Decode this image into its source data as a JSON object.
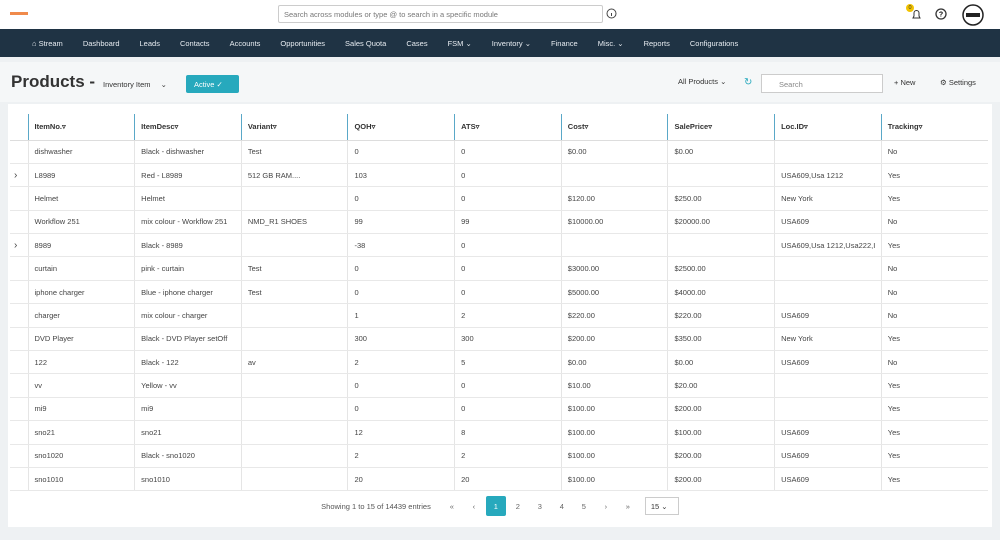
{
  "header": {
    "search_placeholder": "Search across modules or type @ to search in a specific module",
    "notification_count": "0"
  },
  "nav": [
    "Stream",
    "Dashboard",
    "Leads",
    "Contacts",
    "Accounts",
    "Opportunities",
    "Sales Quota",
    "Cases",
    "FSM",
    "Inventory",
    "Finance",
    "Misc.",
    "Reports",
    "Configurations"
  ],
  "nav_dropdowns": [
    8,
    9,
    11
  ],
  "toolbar": {
    "title": "Products -",
    "subtitle": "Inventory Item",
    "status": "Active",
    "filter": "All Products",
    "search_placeholder": "Search",
    "new": "New",
    "settings": "Settings"
  },
  "table": {
    "columns": [
      "ItemNo.",
      "ItemDesc",
      "Variant",
      "QOH",
      "ATS",
      "Cost",
      "SalePrice",
      "Loc.ID",
      "Tracking"
    ],
    "expandable_rows": [
      1,
      4
    ],
    "rows": [
      [
        "dishwasher",
        "Black - dishwasher",
        "Test",
        "0",
        "0",
        "$0.00",
        "$0.00",
        null,
        "No"
      ],
      [
        "L8989",
        "Red - L8989",
        "512 GB RAM....",
        "103",
        "0",
        null,
        null,
        "USA609,Usa 1212",
        "Yes"
      ],
      [
        "Helmet",
        "Helmet",
        null,
        "0",
        "0",
        "$120.00",
        "$250.00",
        "New York",
        "Yes"
      ],
      [
        "Workflow 251",
        "mix colour - Workflow 251",
        "NMD_R1 SHOES",
        "99",
        "99",
        "$10000.00",
        "$20000.00",
        "USA609",
        "No"
      ],
      [
        "8989",
        "Black - 8989",
        null,
        "-38",
        "0",
        null,
        null,
        "USA609,Usa 1212,Usa222,I",
        "Yes"
      ],
      [
        "curtain",
        "pink - curtain",
        "Test",
        "0",
        "0",
        "$3000.00",
        "$2500.00",
        null,
        "No"
      ],
      [
        "iphone charger",
        "Blue - iphone charger",
        "Test",
        "0",
        "0",
        "$5000.00",
        "$4000.00",
        null,
        "No"
      ],
      [
        "charger",
        "mix colour - charger",
        null,
        "1",
        "2",
        "$220.00",
        "$220.00",
        "USA609",
        "No"
      ],
      [
        "DVD Player",
        "Black - DVD Player setOff",
        null,
        "300",
        "300",
        "$200.00",
        "$350.00",
        "New York",
        "Yes"
      ],
      [
        "122",
        "Black - 122",
        "av",
        "2",
        "5",
        "$0.00",
        "$0.00",
        "USA609",
        "No"
      ],
      [
        "vv",
        "Yellow - vv",
        null,
        "0",
        "0",
        "$10.00",
        "$20.00",
        null,
        "Yes"
      ],
      [
        "mi9",
        "mi9",
        null,
        "0",
        "0",
        "$100.00",
        "$200.00",
        null,
        "Yes"
      ],
      [
        "sno21",
        "sno21",
        null,
        "12",
        "8",
        "$100.00",
        "$100.00",
        "USA609",
        "Yes"
      ],
      [
        "sno1020",
        "Black - sno1020",
        null,
        "2",
        "2",
        "$100.00",
        "$200.00",
        "USA609",
        "Yes"
      ],
      [
        "sno1010",
        "sno1010",
        null,
        "20",
        "20",
        "$100.00",
        "$200.00",
        "USA609",
        "Yes"
      ]
    ]
  },
  "pagination": {
    "summary": "Showing 1 to 15 of 14439 entries",
    "pages": [
      "1",
      "2",
      "3",
      "4",
      "5"
    ],
    "current": 0,
    "page_size": "15"
  }
}
